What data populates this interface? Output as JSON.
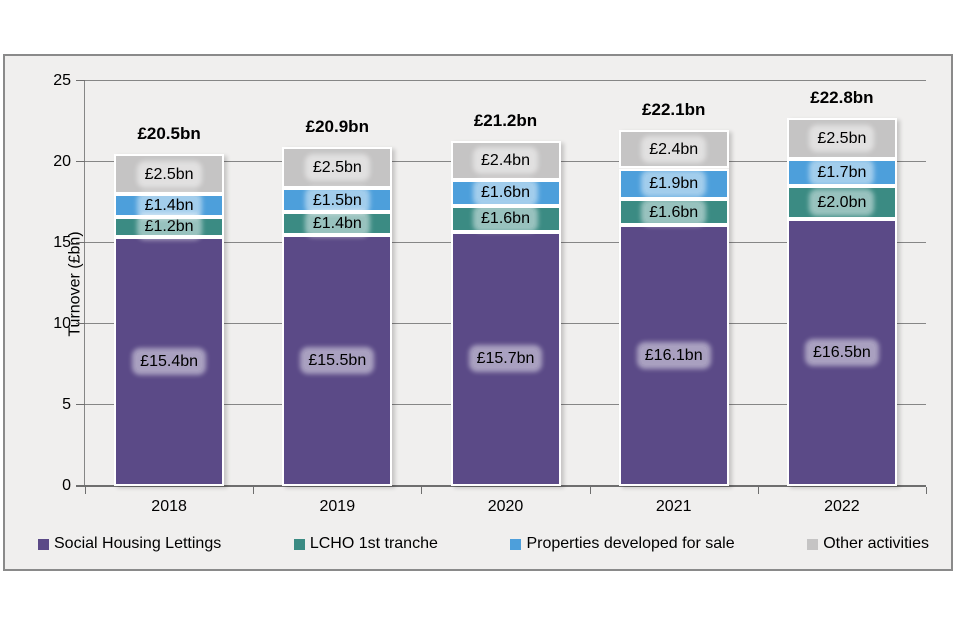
{
  "chart_data": {
    "type": "bar",
    "stacked": true,
    "title": "",
    "ylabel": "Turnover (£bn)",
    "xlabel": "",
    "ylim": [
      0,
      25
    ],
    "ytick_step": 5,
    "grid": true,
    "legend_position": "bottom",
    "value_prefix": "£",
    "value_suffix": "bn",
    "categories": [
      "2018",
      "2019",
      "2020",
      "2021",
      "2022"
    ],
    "series": [
      {
        "name": "Social Housing Lettings",
        "color": "#5b4a87",
        "values": [
          15.4,
          15.5,
          15.7,
          16.1,
          16.5
        ]
      },
      {
        "name": "LCHO 1st tranche",
        "color": "#3b8b83",
        "values": [
          1.2,
          1.4,
          1.6,
          1.6,
          2.0
        ]
      },
      {
        "name": "Properties developed for sale",
        "color": "#4d9fdb",
        "values": [
          1.4,
          1.5,
          1.6,
          1.9,
          1.7
        ]
      },
      {
        "name": "Other activities",
        "color": "#c5c4c4",
        "values": [
          2.5,
          2.5,
          2.4,
          2.4,
          2.5
        ]
      }
    ],
    "totals": [
      20.5,
      20.9,
      21.2,
      22.1,
      22.8
    ]
  },
  "colors": {
    "frame_background": "#f0efee",
    "frame_border": "#8a8a8a",
    "gridline": "#868686",
    "axis": "#6e6e6e",
    "label_text": "#000000"
  }
}
